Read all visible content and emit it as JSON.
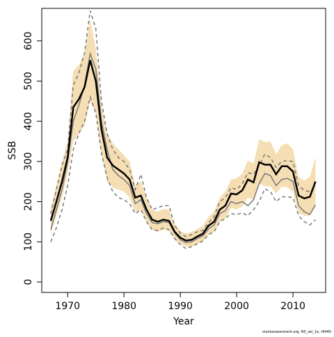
{
  "chart_data": {
    "type": "line",
    "xlabel": "Year",
    "ylabel": "SSB",
    "footnote": "stockassessment.org, NS_sel_1e, r6440",
    "x": [
      1967,
      1968,
      1969,
      1970,
      1971,
      1972,
      1973,
      1974,
      1975,
      1976,
      1977,
      1978,
      1979,
      1980,
      1981,
      1982,
      1983,
      1984,
      1985,
      1986,
      1987,
      1988,
      1989,
      1990,
      1991,
      1992,
      1993,
      1994,
      1995,
      1996,
      1997,
      1998,
      1999,
      2000,
      2001,
      2002,
      2003,
      2004,
      2005,
      2006,
      2007,
      2008,
      2009,
      2010,
      2011,
      2012,
      2013,
      2014
    ],
    "xlim": [
      1965.4,
      2015.8
    ],
    "xticks": [
      1970,
      1980,
      1990,
      2000,
      2010
    ],
    "ylim": [
      -26,
      681
    ],
    "yticks": [
      0,
      100,
      200,
      300,
      400,
      500,
      600
    ],
    "band": {
      "color": "#f5deb3",
      "upper": [
        185,
        240,
        300,
        350,
        525,
        540,
        570,
        655,
        580,
        440,
        370,
        345,
        330,
        315,
        300,
        240,
        250,
        210,
        180,
        175,
        182,
        180,
        145,
        127,
        120,
        125,
        132,
        140,
        162,
        175,
        210,
        225,
        255,
        258,
        270,
        302,
        295,
        355,
        348,
        350,
        318,
        340,
        345,
        330,
        262,
        252,
        262,
        310
      ],
      "lower": [
        120,
        165,
        210,
        270,
        350,
        370,
        390,
        450,
        420,
        320,
        250,
        235,
        230,
        225,
        210,
        175,
        180,
        150,
        130,
        125,
        130,
        128,
        105,
        95,
        88,
        88,
        95,
        100,
        118,
        125,
        150,
        158,
        185,
        180,
        188,
        210,
        205,
        245,
        238,
        238,
        220,
        238,
        235,
        225,
        172,
        165,
        165,
        195
      ]
    },
    "series": [
      {
        "color": "#777777",
        "dashed": true,
        "width": 1.5,
        "values": [
          170,
          230,
          290,
          330,
          490,
          520,
          570,
          675,
          630,
          450,
          370,
          330,
          310,
          300,
          280,
          230,
          268,
          210,
          180,
          185,
          190,
          190,
          140,
          122,
          113,
          118,
          125,
          128,
          148,
          162,
          200,
          210,
          235,
          230,
          245,
          272,
          268,
          290,
          318,
          310,
          285,
          300,
          302,
          300,
          240,
          228,
          225,
          240
        ]
      },
      {
        "color": "#777777",
        "dashed": true,
        "width": 1.5,
        "values": [
          100,
          135,
          180,
          240,
          330,
          370,
          400,
          460,
          420,
          320,
          260,
          225,
          210,
          205,
          195,
          170,
          180,
          150,
          130,
          128,
          135,
          130,
          108,
          93,
          83,
          88,
          95,
          102,
          118,
          125,
          150,
          158,
          170,
          168,
          172,
          165,
          180,
          200,
          232,
          225,
          200,
          212,
          212,
          210,
          165,
          150,
          142,
          155
        ]
      },
      {
        "color": "#777777",
        "dashed": false,
        "width": 1.5,
        "values": [
          130,
          180,
          230,
          300,
          400,
          440,
          490,
          568,
          530,
          400,
          330,
          280,
          265,
          255,
          240,
          195,
          205,
          170,
          148,
          145,
          150,
          148,
          122,
          105,
          98,
          100,
          108,
          115,
          132,
          142,
          170,
          178,
          200,
          195,
          200,
          190,
          205,
          245,
          270,
          265,
          240,
          255,
          258,
          250,
          190,
          175,
          168,
          192
        ]
      },
      {
        "color": "#000000",
        "dashed": false,
        "width": 2.5,
        "values": [
          152,
          200,
          250,
          310,
          435,
          455,
          485,
          552,
          500,
          380,
          310,
          290,
          280,
          270,
          255,
          210,
          215,
          180,
          155,
          150,
          155,
          152,
          125,
          110,
          103,
          105,
          113,
          120,
          140,
          150,
          180,
          190,
          220,
          218,
          228,
          255,
          248,
          298,
          292,
          292,
          268,
          288,
          288,
          275,
          215,
          208,
          212,
          250
        ]
      }
    ]
  }
}
